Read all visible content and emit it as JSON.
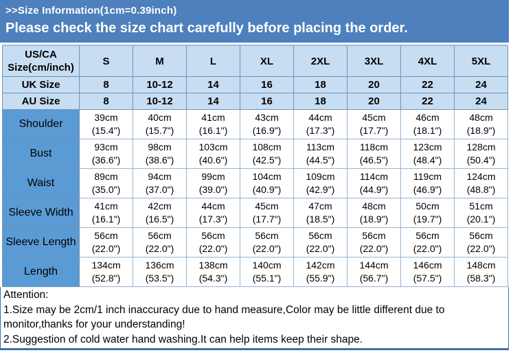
{
  "banner": {
    "title": ">>Size Information(1cm=0.39inch)",
    "subtitle": "Please check the size chart carefully before placing the order."
  },
  "table": {
    "corner_header": "US/CA Size(cm/inch)",
    "size_columns": [
      "S",
      "M",
      "L",
      "XL",
      "2XL",
      "3XL",
      "4XL",
      "5XL"
    ],
    "region_rows": [
      {
        "label": "UK Size",
        "values": [
          "8",
          "10-12",
          "14",
          "16",
          "18",
          "20",
          "22",
          "24"
        ]
      },
      {
        "label": "AU Size",
        "values": [
          "8",
          "10-12",
          "14",
          "16",
          "18",
          "20",
          "22",
          "24"
        ]
      }
    ],
    "measurement_rows": [
      {
        "label": "Shoulder",
        "cm": [
          "39cm",
          "40cm",
          "41cm",
          "43cm",
          "44cm",
          "45cm",
          "46cm",
          "48cm"
        ],
        "inch": [
          "(15.4\")",
          "(15.7\")",
          "(16.1\")",
          "(16.9\")",
          "(17.3\")",
          "(17.7\")",
          "(18.1\")",
          "(18.9\")"
        ]
      },
      {
        "label": "Bust",
        "cm": [
          "93cm",
          "98cm",
          "103cm",
          "108cm",
          "113cm",
          "118cm",
          "123cm",
          "128cm"
        ],
        "inch": [
          "(36.6\")",
          "(38.6\")",
          "(40.6\")",
          "(42.5\")",
          "(44.5\")",
          "(46.5\")",
          "(48.4\")",
          "(50.4\")"
        ]
      },
      {
        "label": "Waist",
        "cm": [
          "89cm",
          "94cm",
          "99cm",
          "104cm",
          "109cm",
          "114cm",
          "119cm",
          "124cm"
        ],
        "inch": [
          "(35.0\")",
          "(37.0\")",
          "(39.0\")",
          "(40.9\")",
          "(42.9\")",
          "(44.9\")",
          "(46.9\")",
          "(48.8\")"
        ]
      },
      {
        "label": "Sleeve Width",
        "cm": [
          "41cm",
          "42cm",
          "44cm",
          "45cm",
          "47cm",
          "48cm",
          "50cm",
          "51cm"
        ],
        "inch": [
          "(16.1\")",
          "(16.5\")",
          "(17.3\")",
          "(17.7\")",
          "(18.5\")",
          "(18.9\")",
          "(19.7\")",
          "(20.1\")"
        ]
      },
      {
        "label": "Sleeve Length",
        "cm": [
          "56cm",
          "56cm",
          "56cm",
          "56cm",
          "56cm",
          "56cm",
          "56cm",
          "56cm"
        ],
        "inch": [
          "(22.0\")",
          "(22.0\")",
          "(22.0\")",
          "(22.0\")",
          "(22.0\")",
          "(22.0\")",
          "(22.0\")",
          "(22.0\")"
        ]
      },
      {
        "label": "Length",
        "cm": [
          "134cm",
          "136cm",
          "138cm",
          "140cm",
          "142cm",
          "144cm",
          "146cm",
          "148cm"
        ],
        "inch": [
          "(52.8\")",
          "(53.5\")",
          "(54.3\")",
          "(55.1\")",
          "(55.9\")",
          "(56.7\")",
          "(57.5\")",
          "(58.3\")"
        ]
      }
    ]
  },
  "attention": {
    "title": "Attention:",
    "notes": [
      "1.Size may be 2cm/1 inch inaccuracy due to hand measure,Color may be little different due to monitor,thanks for your understanding!",
      "2.Suggestion of cold water hand washing.It can help items keep their shape."
    ]
  },
  "colors": {
    "banner_bg": "#4d80bc",
    "banner_text": "#ffffff",
    "header_fill": "#c7ddf2",
    "label_fill": "#5b9bd5",
    "grid_border": "#95b3d7",
    "header_border": "#6f91b3",
    "attention_border": "#3f6fa8",
    "text": "#000000"
  }
}
